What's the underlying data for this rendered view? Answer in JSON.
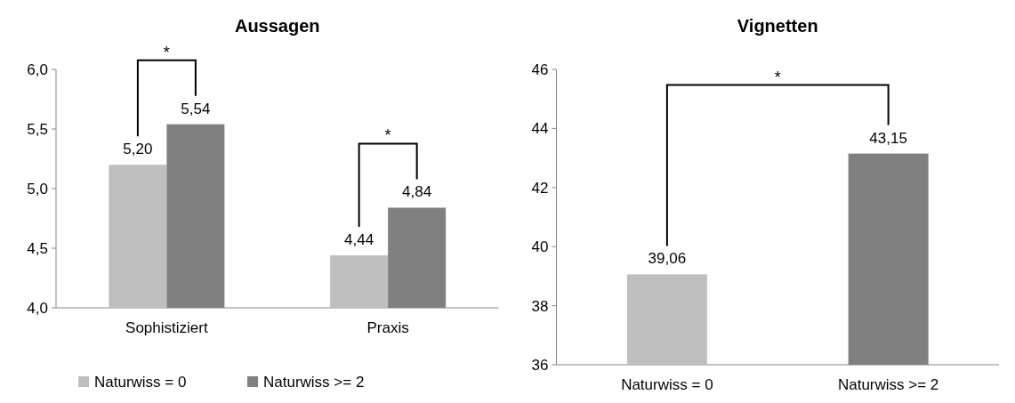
{
  "chart_data": [
    {
      "type": "bar",
      "title": "Aussagen",
      "categories": [
        "Sophistiziert",
        "Praxis"
      ],
      "series": [
        {
          "name": "Naturwiss = 0",
          "color": "#bfbfbf",
          "values": [
            5.2,
            4.44
          ],
          "value_labels": [
            "5,20",
            "4,44"
          ]
        },
        {
          "name": "Naturwiss >= 2",
          "color": "#808080",
          "values": [
            5.54,
            4.84
          ],
          "value_labels": [
            "5,54",
            "4,84"
          ]
        }
      ],
      "ylim": [
        4,
        6
      ],
      "yticks": [
        {
          "value": 4,
          "label": "4,0"
        },
        {
          "value": 4.5,
          "label": "4,5"
        },
        {
          "value": 5,
          "label": "5,0"
        },
        {
          "value": 5.5,
          "label": "5,5"
        },
        {
          "value": 6,
          "label": "6,0"
        }
      ],
      "grid": false,
      "legend": "bottom",
      "annotations": [
        "*",
        "*"
      ]
    },
    {
      "type": "bar",
      "title": "Vignetten",
      "categories": [
        "Naturwiss = 0",
        "Naturwiss >= 2"
      ],
      "values": [
        39.06,
        43.15
      ],
      "colors": [
        "#bfbfbf",
        "#808080"
      ],
      "value_labels": [
        "39,06",
        "43,15"
      ],
      "ylim": [
        36,
        46
      ],
      "yticks": [
        36,
        38,
        40,
        42,
        44,
        46
      ],
      "grid": false,
      "annotations": [
        "*"
      ]
    }
  ]
}
